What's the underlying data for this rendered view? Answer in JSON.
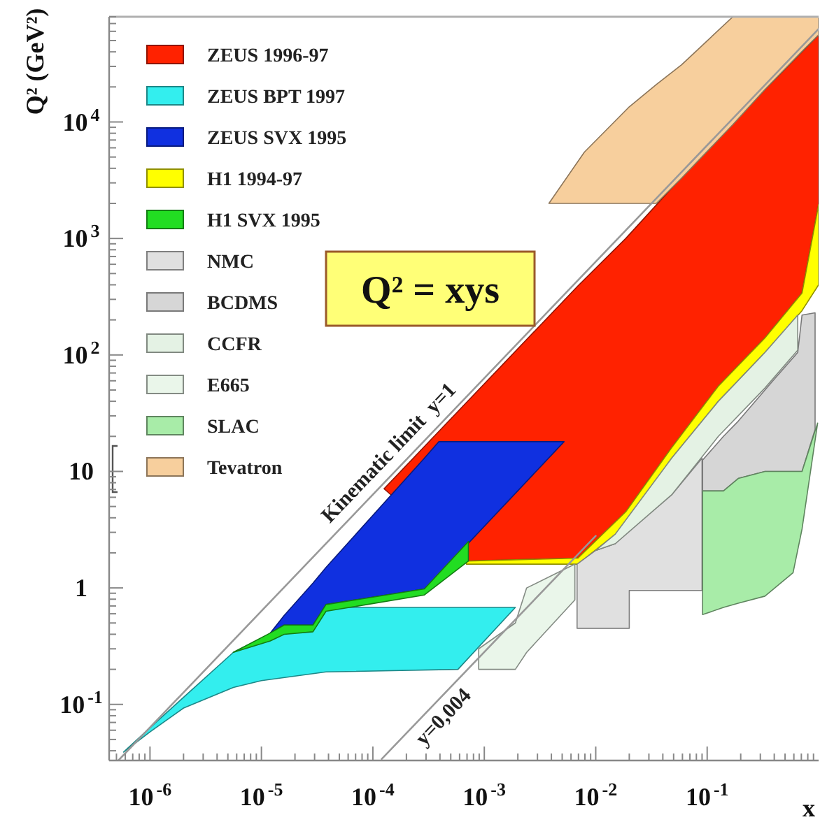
{
  "chart_data": {
    "type": "area",
    "log": "xy",
    "legend": "top left",
    "xlabel": "x",
    "ylabel": "Q² (GeV²)",
    "xlim": [
      4.3e-07,
      1
    ],
    "ylim": [
      0.033,
      80000
    ],
    "xticks": [
      {
        "value": 5e-07,
        "label": null
      },
      {
        "value": 6e-07,
        "label": null
      },
      {
        "value": 7e-07,
        "label": null
      },
      {
        "value": 8e-07,
        "label": null
      },
      {
        "value": 9e-07,
        "label": null
      },
      {
        "value": 1e-06,
        "label": "10$^{-6}$"
      },
      {
        "value": 2e-06,
        "label": null
      },
      {
        "value": 3e-06,
        "label": null
      },
      {
        "value": 4e-06,
        "label": null
      },
      {
        "value": 5e-06,
        "label": null
      },
      {
        "value": 6e-06,
        "label": null
      },
      {
        "value": 7e-06,
        "label": null
      },
      {
        "value": 8e-06,
        "label": null
      },
      {
        "value": 9e-06,
        "label": null
      },
      {
        "value": 1e-05,
        "label": "10$^{-5}$"
      },
      {
        "value": 2e-05,
        "label": null
      },
      {
        "value": 3e-05,
        "label": null
      },
      {
        "value": 4e-05,
        "label": null
      },
      {
        "value": 5e-05,
        "label": null
      },
      {
        "value": 6e-05,
        "label": null
      },
      {
        "value": 7e-05,
        "label": null
      },
      {
        "value": 8e-05,
        "label": null
      },
      {
        "value": 9e-05,
        "label": null
      },
      {
        "value": 0.0001,
        "label": "10$^{-4}$"
      },
      {
        "value": 0.0002,
        "label": null
      },
      {
        "value": 0.0003,
        "label": null
      },
      {
        "value": 0.0004,
        "label": null
      },
      {
        "value": 0.0005,
        "label": null
      },
      {
        "value": 0.0006,
        "label": null
      },
      {
        "value": 0.0007,
        "label": null
      },
      {
        "value": 0.0008,
        "label": null
      },
      {
        "value": 0.0009,
        "label": null
      },
      {
        "value": 0.001,
        "label": "10$^{-3}$"
      },
      {
        "value": 0.002,
        "label": null
      },
      {
        "value": 0.003,
        "label": null
      },
      {
        "value": 0.004,
        "label": null
      },
      {
        "value": 0.005,
        "label": null
      },
      {
        "value": 0.006,
        "label": null
      },
      {
        "value": 0.007,
        "label": null
      },
      {
        "value": 0.008,
        "label": null
      },
      {
        "value": 0.009,
        "label": null
      },
      {
        "value": 0.01,
        "label": "10$^{-2}$"
      },
      {
        "value": 0.02,
        "label": null
      },
      {
        "value": 0.03,
        "label": null
      },
      {
        "value": 0.04,
        "label": null
      },
      {
        "value": 0.05,
        "label": null
      },
      {
        "value": 0.06,
        "label": null
      },
      {
        "value": 0.07,
        "label": null
      },
      {
        "value": 0.08,
        "label": null
      },
      {
        "value": 0.09,
        "label": null
      },
      {
        "value": 0.1,
        "label": "10$^{-1}$"
      },
      {
        "value": 0.2,
        "label": null
      },
      {
        "value": 0.3,
        "label": null
      },
      {
        "value": 0.4,
        "label": null
      },
      {
        "value": 0.5,
        "label": null
      },
      {
        "value": 0.6,
        "label": null
      },
      {
        "value": 0.7,
        "label": null
      },
      {
        "value": 0.8,
        "label": null
      },
      {
        "value": 0.9,
        "label": null
      }
    ],
    "yticks": [
      {
        "value": 0.04,
        "label": null
      },
      {
        "value": 0.05,
        "label": null
      },
      {
        "value": 0.06,
        "label": null
      },
      {
        "value": 0.07,
        "label": null
      },
      {
        "value": 0.08,
        "label": null
      },
      {
        "value": 0.09,
        "label": null
      },
      {
        "value": 0.1,
        "label": "10$^{-1}$"
      },
      {
        "value": 0.2,
        "label": null
      },
      {
        "value": 0.3,
        "label": null
      },
      {
        "value": 0.4,
        "label": null
      },
      {
        "value": 0.5,
        "label": null
      },
      {
        "value": 0.6,
        "label": null
      },
      {
        "value": 0.7,
        "label": null
      },
      {
        "value": 0.8,
        "label": null
      },
      {
        "value": 0.9,
        "label": null
      },
      1,
      {
        "value": 2,
        "label": null
      },
      {
        "value": 3,
        "label": null
      },
      {
        "value": 4,
        "label": null
      },
      {
        "value": 5,
        "label": null
      },
      {
        "value": 6,
        "label": null
      },
      {
        "value": 7,
        "label": null
      },
      {
        "value": 8,
        "label": null
      },
      {
        "value": 9,
        "label": null
      },
      10,
      {
        "value": 20,
        "label": null
      },
      {
        "value": 30,
        "label": null
      },
      {
        "value": 40,
        "label": null
      },
      {
        "value": 50,
        "label": null
      },
      {
        "value": 60,
        "label": null
      },
      {
        "value": 70,
        "label": null
      },
      {
        "value": 80,
        "label": null
      },
      {
        "value": 90,
        "label": null
      },
      {
        "value": 100,
        "label": "10$^{2}$"
      },
      {
        "value": 200,
        "label": null
      },
      {
        "value": 300,
        "label": null
      },
      {
        "value": 400,
        "label": null
      },
      {
        "value": 500,
        "label": null
      },
      {
        "value": 600,
        "label": null
      },
      {
        "value": 700,
        "label": null
      },
      {
        "value": 800,
        "label": null
      },
      {
        "value": 900,
        "label": null
      },
      {
        "value": 1000,
        "label": "10$^{3}$"
      },
      {
        "value": 2000,
        "label": null
      },
      {
        "value": 3000,
        "label": null
      },
      {
        "value": 4000,
        "label": null
      },
      {
        "value": 5000,
        "label": null
      },
      {
        "value": 6000,
        "label": null
      },
      {
        "value": 7000,
        "label": null
      },
      {
        "value": 8000,
        "label": null
      },
      {
        "value": 9000,
        "label": null
      },
      {
        "value": 10000,
        "label": "10$^{4}$"
      },
      {
        "value": 20000,
        "label": null
      },
      {
        "value": 30000,
        "label": null
      },
      {
        "value": 40000,
        "label": null
      },
      {
        "value": 50000,
        "label": null
      },
      {
        "value": 60000,
        "label": null
      },
      {
        "value": 70000,
        "label": null
      },
      {
        "value": 80000,
        "label": null
      }
    ],
    "series": [
      {
        "name": "ZEUS 1996-97",
        "color": "#ff2200",
        "x": [
          0.000126,
          0.00069,
          0.0069,
          0.0186,
          0.048,
          0.126,
          0.33,
          0.71,
          1
        ],
        "values": [
          null,
          null,
          null,
          null,
          null,
          null,
          null,
          null,
          null
        ],
        "upper": [
          7.1,
          39,
          390,
          1000,
          2700,
          7100,
          19000,
          40000,
          56000
        ],
        "lower": [
          7.1,
          1.7,
          1.8,
          4.5,
          16,
          54,
          140,
          340,
          1950
        ]
      },
      {
        "name": "ZEUS BPT 1997",
        "color": "#33eeee",
        "x": [
          5.8e-07,
          1e-06,
          2e-06,
          5.6e-06,
          1e-05,
          3.8e-05,
          0.00058,
          0.0019
        ],
        "values": [
          null,
          null,
          null,
          null,
          null,
          null,
          null,
          null
        ],
        "upper": [
          0.039,
          0.063,
          0.115,
          0.28,
          0.37,
          0.68,
          0.68,
          0.68
        ],
        "lower": [
          0.039,
          0.058,
          0.093,
          0.14,
          0.16,
          0.19,
          0.2,
          0.68
        ]
      },
      {
        "name": "ZEUS SVX 1995",
        "color": "#1030e0",
        "x": [
          1.2e-05,
          1.6e-05,
          2.9e-05,
          3.8e-05,
          0.00029,
          0.00039,
          0.0052
        ],
        "values": [
          null,
          null,
          null,
          null,
          null,
          null,
          null
        ],
        "upper": [
          0.41,
          0.58,
          1.1,
          1.5,
          13,
          18,
          18
        ],
        "lower": [
          0.41,
          0.48,
          0.48,
          0.72,
          0.98,
          1.3,
          18
        ]
      },
      {
        "name": "H1 1994-97",
        "color": "#ffff00",
        "x": [
          0.00069,
          0.0069,
          0.0186,
          0.048,
          0.126,
          0.33,
          0.71,
          1
        ],
        "values": [
          null,
          null,
          null,
          null,
          null,
          null,
          null,
          null
        ],
        "upper": [
          1.7,
          1.8,
          4.5,
          16,
          54,
          140,
          340,
          1950
        ],
        "lower": [
          1.6,
          1.6,
          3.4,
          13,
          40,
          105,
          240,
          400
        ]
      },
      {
        "name": "H1 SVX 1995",
        "color": "#22dd22",
        "x": [
          5.6e-06,
          1.2e-05,
          1.6e-05,
          2.9e-05,
          3.8e-05,
          0.00029,
          0.00072
        ],
        "values": [
          null,
          null,
          null,
          null,
          null,
          null,
          null
        ],
        "upper": [
          0.28,
          0.41,
          0.48,
          0.48,
          0.72,
          0.98,
          2.5
        ],
        "lower": [
          0.28,
          0.35,
          0.4,
          0.42,
          0.63,
          0.87,
          1.7
        ]
      },
      {
        "name": "NMC",
        "color": "#e0e0e0",
        "x": [
          0.0068,
          0.01,
          0.015,
          0.02,
          0.02,
          0.048,
          0.09
        ],
        "values": [
          null,
          null,
          null,
          null,
          null,
          null,
          null
        ],
        "upper": [
          1.6,
          2.1,
          2.4,
          3.1,
          3.1,
          6.3,
          13
        ],
        "lower": [
          0.45,
          0.45,
          0.45,
          0.45,
          0.95,
          0.95,
          0.95
        ]
      },
      {
        "name": "BCDMS",
        "color": "#d6d6d6",
        "x": [
          0.091,
          0.14,
          0.19,
          0.33,
          0.4,
          0.65,
          0.71,
          0.93
        ],
        "values": [
          null,
          null,
          null,
          null,
          null,
          null,
          null,
          null
        ],
        "upper": [
          12.5,
          20,
          27,
          50,
          62,
          105,
          220,
          230
        ],
        "lower": [
          6.8,
          6.8,
          8.7,
          10,
          10,
          10,
          10,
          23
        ]
      },
      {
        "name": "CCFR",
        "color": "#e4f2e4",
        "x": [
          0.01,
          0.015,
          0.048,
          0.126,
          0.33,
          0.65
        ],
        "values": [
          null,
          null,
          null,
          null,
          null,
          null
        ],
        "upper": [
          2.1,
          2.9,
          13,
          40,
          105,
          220
        ],
        "lower": [
          2.1,
          2.4,
          6.3,
          20,
          52,
          110
        ]
      },
      {
        "name": "E665",
        "color": "#eaf6ea",
        "x": [
          0.00089,
          0.0019,
          0.0024,
          0.0065
        ],
        "values": [
          null,
          null,
          null,
          null
        ],
        "upper": [
          0.3,
          0.5,
          1.0,
          1.6
        ],
        "lower": [
          0.2,
          0.2,
          0.28,
          0.79
        ]
      },
      {
        "name": "SLAC",
        "color": "#a8eca8",
        "x": [
          0.091,
          0.14,
          0.19,
          0.33,
          0.59,
          0.71,
          0.98
        ],
        "values": [
          null,
          null,
          null,
          null,
          null,
          null,
          null
        ],
        "upper": [
          6.8,
          6.8,
          8.7,
          10,
          10,
          10,
          26
        ],
        "lower": [
          0.59,
          0.68,
          0.74,
          0.85,
          1.35,
          3.2,
          26
        ]
      },
      {
        "name": "Tevatron",
        "color": "#f7cf9d",
        "x": [
          0.0038,
          0.0079,
          0.02,
          0.035,
          0.059,
          0.17,
          0.33,
          0.74,
          1
        ],
        "values": [
          null,
          null,
          null,
          null,
          null,
          null,
          null,
          null,
          null
        ],
        "upper": [
          2000,
          5500,
          13500,
          21000,
          31000,
          80000,
          80000,
          80000,
          80000
        ],
        "lower": [
          2000,
          2000,
          2000,
          2000,
          3300,
          9500,
          19000,
          42000,
          56000
        ]
      },
      {
        "type": "line",
        "color": "#999999",
        "x": [
          5.2e-07,
          1
        ],
        "values": [
          0.033,
          63000
        ]
      },
      {
        "type": "line",
        "color": "#999999",
        "x": [
          0.00012,
          0.01
        ],
        "values": [
          0.034,
          2.8
        ]
      }
    ],
    "annotations": [
      "Q² = xys",
      "Kinematic limit  y=1",
      "y=0,004"
    ]
  }
}
